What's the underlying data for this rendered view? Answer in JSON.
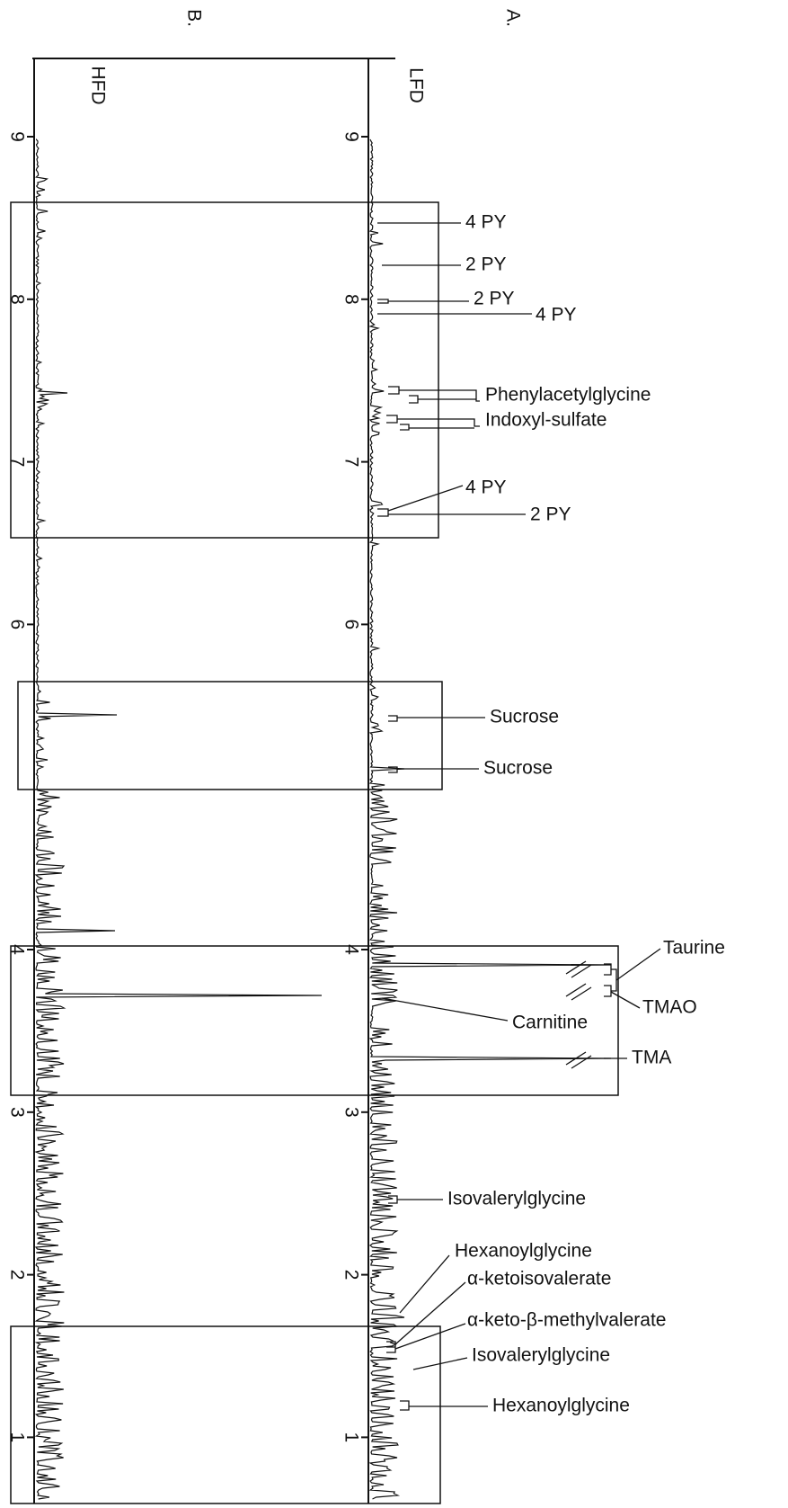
{
  "panels": [
    {
      "label": "A.",
      "group": "LFD",
      "ticks": [
        9,
        8,
        7,
        6,
        4,
        3,
        2,
        1
      ],
      "annotations": [
        "4 PY",
        "2 PY",
        "2 PY",
        "4 PY",
        "Phenylacetylglycine",
        "Indoxyl-sulfate",
        "4 PY",
        "2 PY",
        "Sucrose",
        "Sucrose",
        "Taurine",
        "TMAO",
        "Carnitine",
        "TMA",
        "Isovalerylglycine",
        "Hexanoylglycine",
        "α-ketoisovalerate",
        "α-keto-β-methylvalerate",
        "Isovalerylglycine",
        "Hexanoylglycine"
      ]
    },
    {
      "label": "B.",
      "group": "HFD",
      "ticks": [
        9,
        8,
        7,
        6,
        4,
        3,
        2,
        1
      ]
    }
  ]
}
